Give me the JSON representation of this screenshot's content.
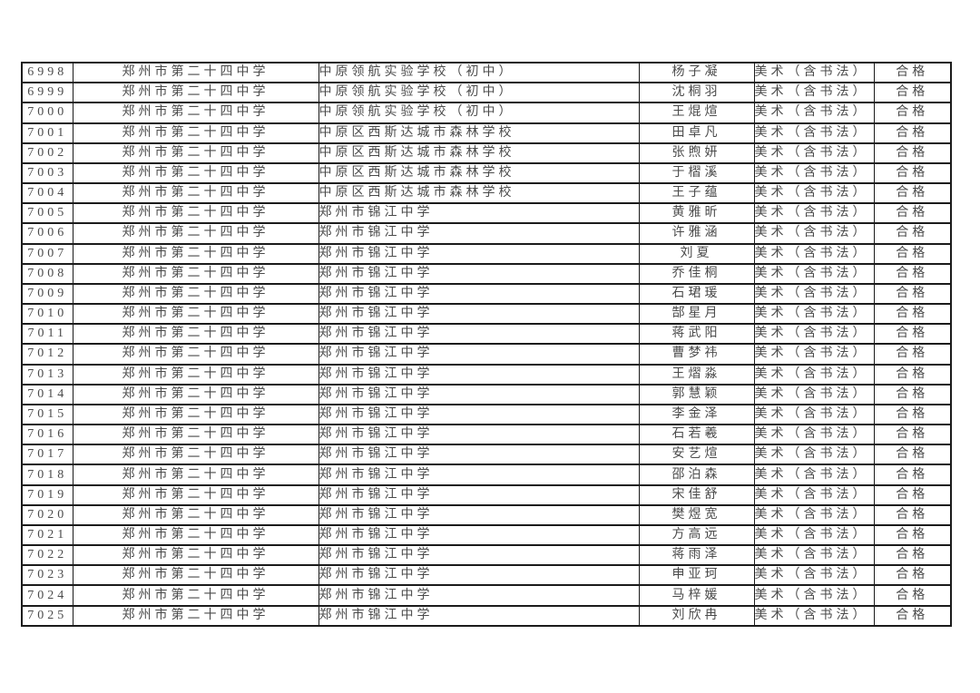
{
  "page": {
    "background_color": "#ffffff",
    "text_color": "#4b4b4b",
    "border_color": "#1b1b1b"
  },
  "table": {
    "columns": [
      {
        "key": "serial"
      },
      {
        "key": "reporting_school"
      },
      {
        "key": "attending_school"
      },
      {
        "key": "student_name"
      },
      {
        "key": "subject"
      },
      {
        "key": "result"
      }
    ],
    "rows": [
      [
        "6998",
        "郑州市第二十四中学",
        "中原领航实验学校（初中）",
        "杨子凝",
        "美术（含书法）",
        "合格"
      ],
      [
        "6999",
        "郑州市第二十四中学",
        "中原领航实验学校（初中）",
        "沈桐羽",
        "美术（含书法）",
        "合格"
      ],
      [
        "7000",
        "郑州市第二十四中学",
        "中原领航实验学校（初中）",
        "王焜煊",
        "美术（含书法）",
        "合格"
      ],
      [
        "7001",
        "郑州市第二十四中学",
        "中原区西斯达城市森林学校",
        "田卓凡",
        "美术（含书法）",
        "合格"
      ],
      [
        "7002",
        "郑州市第二十四中学",
        "中原区西斯达城市森林学校",
        "张煦妍",
        "美术（含书法）",
        "合格"
      ],
      [
        "7003",
        "郑州市第二十四中学",
        "中原区西斯达城市森林学校",
        "于槢溪",
        "美术（含书法）",
        "合格"
      ],
      [
        "7004",
        "郑州市第二十四中学",
        "中原区西斯达城市森林学校",
        "王子蕴",
        "美术（含书法）",
        "合格"
      ],
      [
        "7005",
        "郑州市第二十四中学",
        "郑州市锦江中学",
        "黄雅昕",
        "美术（含书法）",
        "合格"
      ],
      [
        "7006",
        "郑州市第二十四中学",
        "郑州市锦江中学",
        "许雅涵",
        "美术（含书法）",
        "合格"
      ],
      [
        "7007",
        "郑州市第二十四中学",
        "郑州市锦江中学",
        "刘夏",
        "美术（含书法）",
        "合格"
      ],
      [
        "7008",
        "郑州市第二十四中学",
        "郑州市锦江中学",
        "乔佳桐",
        "美术（含书法）",
        "合格"
      ],
      [
        "7009",
        "郑州市第二十四中学",
        "郑州市锦江中学",
        "石珺瑗",
        "美术（含书法）",
        "合格"
      ],
      [
        "7010",
        "郑州市第二十四中学",
        "郑州市锦江中学",
        "郜星月",
        "美术（含书法）",
        "合格"
      ],
      [
        "7011",
        "郑州市第二十四中学",
        "郑州市锦江中学",
        "蒋武阳",
        "美术（含书法）",
        "合格"
      ],
      [
        "7012",
        "郑州市第二十四中学",
        "郑州市锦江中学",
        "曹梦祎",
        "美术（含书法）",
        "合格"
      ],
      [
        "7013",
        "郑州市第二十四中学",
        "郑州市锦江中学",
        "王熠淼",
        "美术（含书法）",
        "合格"
      ],
      [
        "7014",
        "郑州市第二十四中学",
        "郑州市锦江中学",
        "郭慧颖",
        "美术（含书法）",
        "合格"
      ],
      [
        "7015",
        "郑州市第二十四中学",
        "郑州市锦江中学",
        "李金泽",
        "美术（含书法）",
        "合格"
      ],
      [
        "7016",
        "郑州市第二十四中学",
        "郑州市锦江中学",
        "石若羲",
        "美术（含书法）",
        "合格"
      ],
      [
        "7017",
        "郑州市第二十四中学",
        "郑州市锦江中学",
        "安艺煊",
        "美术（含书法）",
        "合格"
      ],
      [
        "7018",
        "郑州市第二十四中学",
        "郑州市锦江中学",
        "邵泊森",
        "美术（含书法）",
        "合格"
      ],
      [
        "7019",
        "郑州市第二十四中学",
        "郑州市锦江中学",
        "宋佳舒",
        "美术（含书法）",
        "合格"
      ],
      [
        "7020",
        "郑州市第二十四中学",
        "郑州市锦江中学",
        "樊煜宽",
        "美术（含书法）",
        "合格"
      ],
      [
        "7021",
        "郑州市第二十四中学",
        "郑州市锦江中学",
        "方高远",
        "美术（含书法）",
        "合格"
      ],
      [
        "7022",
        "郑州市第二十四中学",
        "郑州市锦江中学",
        "蒋雨泽",
        "美术（含书法）",
        "合格"
      ],
      [
        "7023",
        "郑州市第二十四中学",
        "郑州市锦江中学",
        "申亚珂",
        "美术（含书法）",
        "合格"
      ],
      [
        "7024",
        "郑州市第二十四中学",
        "郑州市锦江中学",
        "马梓媛",
        "美术（含书法）",
        "合格"
      ],
      [
        "7025",
        "郑州市第二十四中学",
        "郑州市锦江中学",
        "刘欣冉",
        "美术（含书法）",
        "合格"
      ]
    ]
  }
}
